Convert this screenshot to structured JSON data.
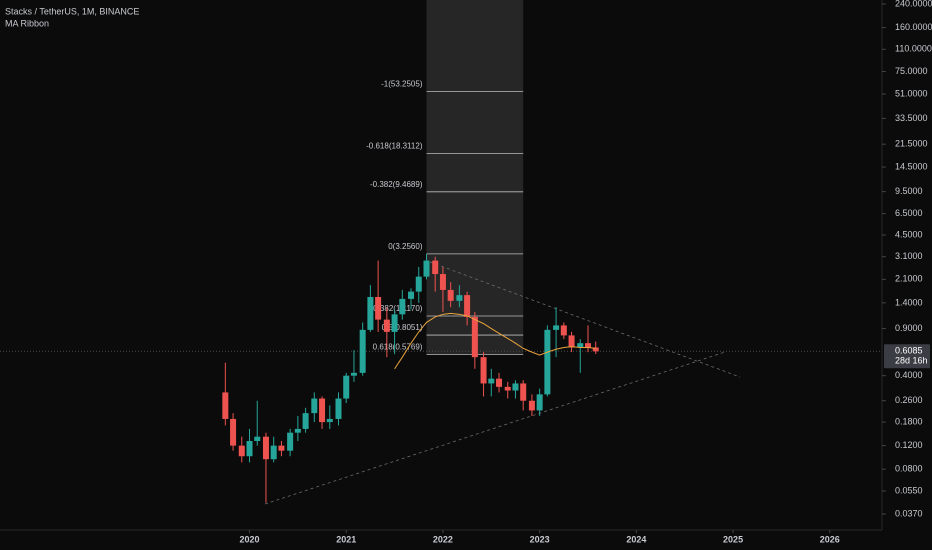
{
  "chart_data": {
    "type": "candlestick",
    "title": "Stacks / TetherUS, 1M, BINANCE",
    "indicator": "MA Ribbon",
    "log_scale": true,
    "up_color": "#26a69a",
    "down_color": "#ef5350",
    "x": [
      2019.75,
      2019.83,
      2019.92,
      2020,
      2020.08,
      2020.17,
      2020.25,
      2020.33,
      2020.42,
      2020.5,
      2020.58,
      2020.67,
      2020.75,
      2020.83,
      2020.92,
      2021,
      2021.08,
      2021.17,
      2021.25,
      2021.33,
      2021.42,
      2021.5,
      2021.58,
      2021.67,
      2021.75,
      2021.83,
      2021.92,
      2022,
      2022.08,
      2022.17,
      2022.25,
      2022.33,
      2022.42,
      2022.5,
      2022.58,
      2022.67,
      2022.75,
      2022.83,
      2022.92,
      2023,
      2023.08,
      2023.17,
      2023.25,
      2023.33,
      2023.42,
      2023.5,
      2023.58
    ],
    "open": [
      0.3,
      0.19,
      0.12,
      0.1,
      0.13,
      0.14,
      0.095,
      0.12,
      0.11,
      0.15,
      0.16,
      0.21,
      0.27,
      0.18,
      0.19,
      0.27,
      0.4,
      0.42,
      0.88,
      1.55,
      1.05,
      0.85,
      1.15,
      1.5,
      1.7,
      2.2,
      2.9,
      2.3,
      1.75,
      1.45,
      1.6,
      1.1,
      0.55,
      0.35,
      0.38,
      0.33,
      0.31,
      0.35,
      0.26,
      0.22,
      0.29,
      0.88,
      0.95,
      0.8,
      0.65,
      0.7,
      0.65
    ],
    "high": [
      0.5,
      0.21,
      0.14,
      0.16,
      0.26,
      0.15,
      0.14,
      0.13,
      0.16,
      0.2,
      0.23,
      0.3,
      0.28,
      0.24,
      0.3,
      0.42,
      0.62,
      1.0,
      1.9,
      2.9,
      1.3,
      1.25,
      1.75,
      1.8,
      2.6,
      3.256,
      3.1,
      2.6,
      2.0,
      1.9,
      1.7,
      1.2,
      0.6,
      0.45,
      0.42,
      0.36,
      0.37,
      0.37,
      0.29,
      0.32,
      0.95,
      1.3,
      1.0,
      0.85,
      0.75,
      0.95,
      0.72
    ],
    "low": [
      0.17,
      0.11,
      0.09,
      0.09,
      0.12,
      0.045,
      0.09,
      0.1,
      0.1,
      0.13,
      0.15,
      0.18,
      0.16,
      0.16,
      0.17,
      0.25,
      0.36,
      0.4,
      0.85,
      0.85,
      0.55,
      0.58,
      1.05,
      1.25,
      1.4,
      2.1,
      1.7,
      1.2,
      1.3,
      1.3,
      0.95,
      0.45,
      0.28,
      0.28,
      0.3,
      0.27,
      0.27,
      0.22,
      0.2,
      0.2,
      0.28,
      0.55,
      0.75,
      0.6,
      0.42,
      0.6,
      0.58
    ],
    "close": [
      0.19,
      0.12,
      0.1,
      0.13,
      0.14,
      0.095,
      0.12,
      0.11,
      0.15,
      0.16,
      0.21,
      0.27,
      0.18,
      0.19,
      0.27,
      0.4,
      0.42,
      0.88,
      1.55,
      1.05,
      0.85,
      1.15,
      1.5,
      1.7,
      2.2,
      2.9,
      2.3,
      1.75,
      1.45,
      1.6,
      1.1,
      0.55,
      0.35,
      0.38,
      0.33,
      0.31,
      0.35,
      0.26,
      0.22,
      0.29,
      0.88,
      0.95,
      0.8,
      0.65,
      0.7,
      0.65,
      0.6085
    ],
    "ma": {
      "color": "#e8a33c",
      "values": [
        null,
        null,
        null,
        null,
        null,
        null,
        null,
        null,
        null,
        null,
        null,
        null,
        null,
        null,
        null,
        null,
        null,
        null,
        null,
        null,
        null,
        0.45,
        0.55,
        0.7,
        0.85,
        1.0,
        1.1,
        1.15,
        1.17,
        1.15,
        1.12,
        1.05,
        0.98,
        0.9,
        0.83,
        0.76,
        0.7,
        0.64,
        0.6,
        0.57,
        0.6,
        0.63,
        0.65,
        0.66,
        0.65,
        0.65,
        0.64
      ]
    },
    "fib_xrange": [
      2021.83,
      2022.83
    ],
    "fib_levels": [
      {
        "value": 53.2505,
        "label": "-1(53.2505)"
      },
      {
        "value": 18.3112,
        "label": "-0.618(18.3112)"
      },
      {
        "value": 9.4689,
        "label": "-0.382(9.4689)"
      },
      {
        "value": 3.256,
        "label": "0(3.2560)"
      },
      {
        "value": 1.117,
        "label": "0.382(1.1170)"
      },
      {
        "value": 0.8051,
        "label": "0.5(0.8051)"
      },
      {
        "value": 0.5769,
        "label": "0.618(0.5769)"
      }
    ],
    "last_price": {
      "value": 0.6085,
      "label": "0.6085"
    },
    "countdown": "28d 16h",
    "xlim": [
      2017.42,
      2026.54
    ],
    "xticks": [
      2020,
      2021,
      2022,
      2023,
      2024,
      2025,
      2026
    ],
    "ylim": [
      0.0281,
      257
    ],
    "yticks": [
      {
        "value": 240,
        "label": "240.0000"
      },
      {
        "value": 160,
        "label": "160.0000"
      },
      {
        "value": 110,
        "label": "110.0000"
      },
      {
        "value": 75,
        "label": "75.0000"
      },
      {
        "value": 51,
        "label": "51.0000"
      },
      {
        "value": 33.5,
        "label": "33.5000"
      },
      {
        "value": 21.5,
        "label": "21.5000"
      },
      {
        "value": 14.5,
        "label": "14.5000"
      },
      {
        "value": 9.5,
        "label": "9.5000"
      },
      {
        "value": 6.5,
        "label": "6.5000"
      },
      {
        "value": 4.5,
        "label": "4.5000"
      },
      {
        "value": 3.1,
        "label": "3.1000"
      },
      {
        "value": 2.1,
        "label": "2.1000"
      },
      {
        "value": 1.4,
        "label": "1.4000"
      },
      {
        "value": 0.9,
        "label": "0.9000"
      },
      {
        "value": 0.4,
        "label": "0.4000"
      },
      {
        "value": 0.26,
        "label": "0.2600"
      },
      {
        "value": 0.18,
        "label": "0.1800"
      },
      {
        "value": 0.12,
        "label": "0.1200"
      },
      {
        "value": 0.08,
        "label": "0.0800"
      },
      {
        "value": 0.055,
        "label": "0.0550"
      },
      {
        "value": 0.037,
        "label": "0.0370"
      }
    ]
  }
}
